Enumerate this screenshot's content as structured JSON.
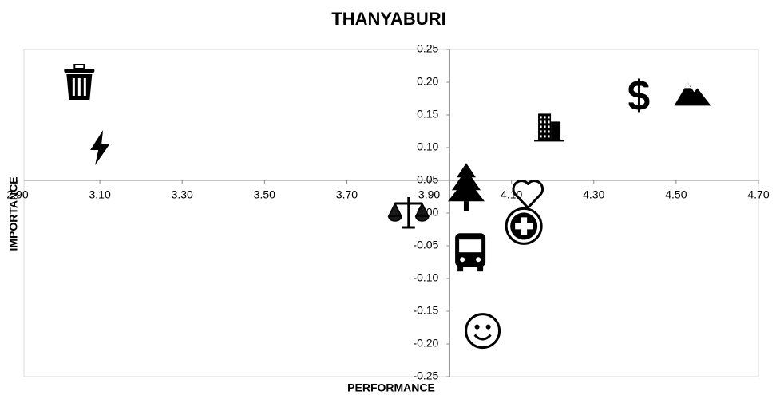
{
  "chart_data": {
    "type": "scatter",
    "title": "THANYABURI",
    "x_label": "PERFORMANCE",
    "y_label": "IMPORTANCE",
    "x": [
      3.05,
      3.1,
      3.85,
      3.99,
      4.0,
      4.03,
      4.14,
      4.13,
      4.19,
      4.41,
      4.54
    ],
    "values": [
      0.2,
      0.1,
      0.0,
      0.04,
      -0.06,
      -0.18,
      0.03,
      -0.02,
      0.13,
      0.18,
      0.18
    ],
    "color": "#000000",
    "xlim": [
      2.9,
      4.7
    ],
    "xticks": [
      {
        "value": 2.9,
        "label": "2.90"
      },
      {
        "value": 3.1,
        "label": "3.10"
      },
      {
        "value": 3.3,
        "label": "3.30"
      },
      {
        "value": 3.5,
        "label": "3.50"
      },
      {
        "value": 3.7,
        "label": "3.70"
      },
      {
        "value": 3.9,
        "label": "3.90"
      },
      {
        "value": 4.1,
        "label": "4.10"
      },
      {
        "value": 4.3,
        "label": "4.30"
      },
      {
        "value": 4.5,
        "label": "4.50"
      },
      {
        "value": 4.7,
        "label": "4.70"
      }
    ],
    "ylim": [
      -0.25,
      0.25
    ],
    "yticks": [
      0.25,
      {
        "value": 0.2,
        "label": "0.20"
      },
      0.15,
      {
        "value": 0.1,
        "label": "0.10"
      },
      0.05,
      {
        "value": 0,
        "label": "0.00"
      },
      -0.05,
      {
        "value": -0.1,
        "label": "-0.10"
      },
      -0.15,
      {
        "value": -0.2,
        "label": "-0.20"
      },
      -0.25
    ],
    "x_axis_at_y": 0.05,
    "y_axis_at_x": 3.95
  }
}
